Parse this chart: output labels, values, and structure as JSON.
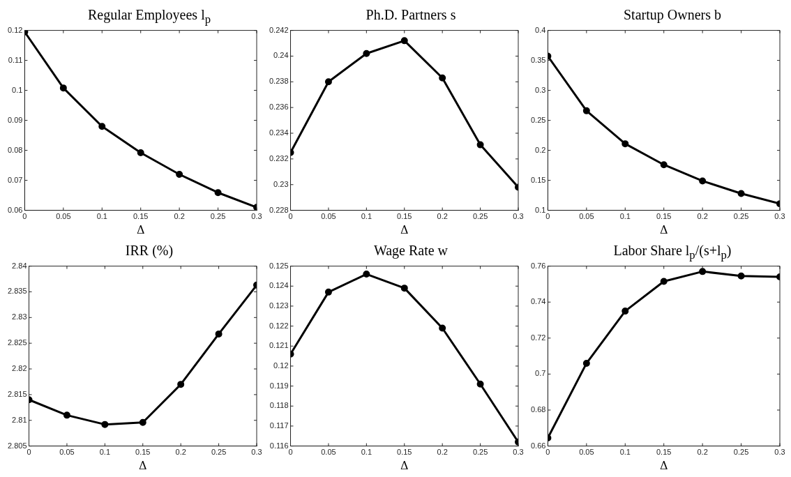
{
  "chart_data": [
    {
      "type": "line",
      "title": "Regular Employees l$_{p}$",
      "xlabel": "Δ",
      "x": [
        0,
        0.05,
        0.1,
        0.15,
        0.2,
        0.25,
        0.3
      ],
      "series": [
        {
          "color": "#000000",
          "values": [
            0.1195,
            0.1008,
            0.088,
            0.0792,
            0.072,
            0.0659,
            0.061
          ]
        }
      ],
      "xlim": [
        0,
        0.3
      ],
      "xticks": [
        0,
        0.05,
        0.1,
        0.15,
        0.2,
        0.25,
        0.3
      ],
      "ylim": [
        0.06,
        0.12
      ],
      "yticks": [
        0.06,
        0.07,
        0.08,
        0.09,
        0.1,
        0.11,
        0.12
      ],
      "grid": false,
      "legend": false,
      "marker": "circle",
      "line_style": "solid"
    },
    {
      "type": "line",
      "title": "Ph.D. Partners s",
      "xlabel": "Δ",
      "x": [
        0,
        0.05,
        0.1,
        0.15,
        0.2,
        0.25,
        0.3
      ],
      "series": [
        {
          "color": "#000000",
          "values": [
            0.2325,
            0.238,
            0.2402,
            0.2412,
            0.2383,
            0.2331,
            0.2298
          ]
        }
      ],
      "xlim": [
        0,
        0.3
      ],
      "xticks": [
        0,
        0.05,
        0.1,
        0.15,
        0.2,
        0.25,
        0.3
      ],
      "ylim": [
        0.228,
        0.242
      ],
      "yticks": [
        0.228,
        0.23,
        0.232,
        0.234,
        0.236,
        0.238,
        0.24,
        0.242
      ],
      "grid": false,
      "legend": false,
      "marker": "circle",
      "line_style": "solid"
    },
    {
      "type": "line",
      "title": "Startup Owners b",
      "xlabel": "Δ",
      "x": [
        0,
        0.05,
        0.1,
        0.15,
        0.2,
        0.25,
        0.3
      ],
      "series": [
        {
          "color": "#000000",
          "values": [
            0.357,
            0.266,
            0.211,
            0.176,
            0.149,
            0.128,
            0.111
          ]
        }
      ],
      "xlim": [
        0,
        0.3
      ],
      "xticks": [
        0,
        0.05,
        0.1,
        0.15,
        0.2,
        0.25,
        0.3
      ],
      "ylim": [
        0.1,
        0.4
      ],
      "yticks": [
        0.1,
        0.15,
        0.2,
        0.25,
        0.3,
        0.35,
        0.4
      ],
      "grid": false,
      "legend": false,
      "marker": "circle",
      "line_style": "solid"
    },
    {
      "type": "line",
      "title": "IRR (%)",
      "xlabel": "Δ",
      "x": [
        0,
        0.05,
        0.1,
        0.15,
        0.2,
        0.25,
        0.3
      ],
      "series": [
        {
          "color": "#000000",
          "values": [
            2.814,
            2.811,
            2.8092,
            2.8096,
            2.817,
            2.8268,
            2.8363
          ]
        }
      ],
      "xlim": [
        0,
        0.3
      ],
      "xticks": [
        0,
        0.05,
        0.1,
        0.15,
        0.2,
        0.25,
        0.3
      ],
      "ylim": [
        2.805,
        2.84
      ],
      "yticks": [
        2.805,
        2.81,
        2.815,
        2.82,
        2.825,
        2.83,
        2.835,
        2.84
      ],
      "grid": false,
      "legend": false,
      "marker": "circle",
      "line_style": "solid"
    },
    {
      "type": "line",
      "title": "Wage Rate w",
      "xlabel": "Δ",
      "x": [
        0,
        0.05,
        0.1,
        0.15,
        0.2,
        0.25,
        0.3
      ],
      "series": [
        {
          "color": "#000000",
          "values": [
            0.1206,
            0.1237,
            0.1246,
            0.1239,
            0.1219,
            0.1191,
            0.1162
          ]
        }
      ],
      "xlim": [
        0,
        0.3
      ],
      "xticks": [
        0,
        0.05,
        0.1,
        0.15,
        0.2,
        0.25,
        0.3
      ],
      "ylim": [
        0.116,
        0.125
      ],
      "yticks": [
        0.116,
        0.117,
        0.118,
        0.119,
        0.12,
        0.121,
        0.122,
        0.123,
        0.124,
        0.125
      ],
      "grid": false,
      "legend": false,
      "marker": "circle",
      "line_style": "solid"
    },
    {
      "type": "line",
      "title": "Labor Share l$_{p}$/(s+l$_{p}$)",
      "xlabel": "Δ",
      "x": [
        0,
        0.05,
        0.1,
        0.15,
        0.2,
        0.25,
        0.3
      ],
      "series": [
        {
          "color": "#000000",
          "values": [
            0.6645,
            0.706,
            0.735,
            0.7515,
            0.757,
            0.7545,
            0.754
          ]
        }
      ],
      "xlim": [
        0,
        0.3
      ],
      "xticks": [
        0,
        0.05,
        0.1,
        0.15,
        0.2,
        0.25,
        0.3
      ],
      "ylim": [
        0.66,
        0.76
      ],
      "yticks": [
        0.66,
        0.68,
        0.7,
        0.72,
        0.74,
        0.76
      ],
      "grid": false,
      "legend": false,
      "marker": "circle",
      "line_style": "solid"
    }
  ]
}
